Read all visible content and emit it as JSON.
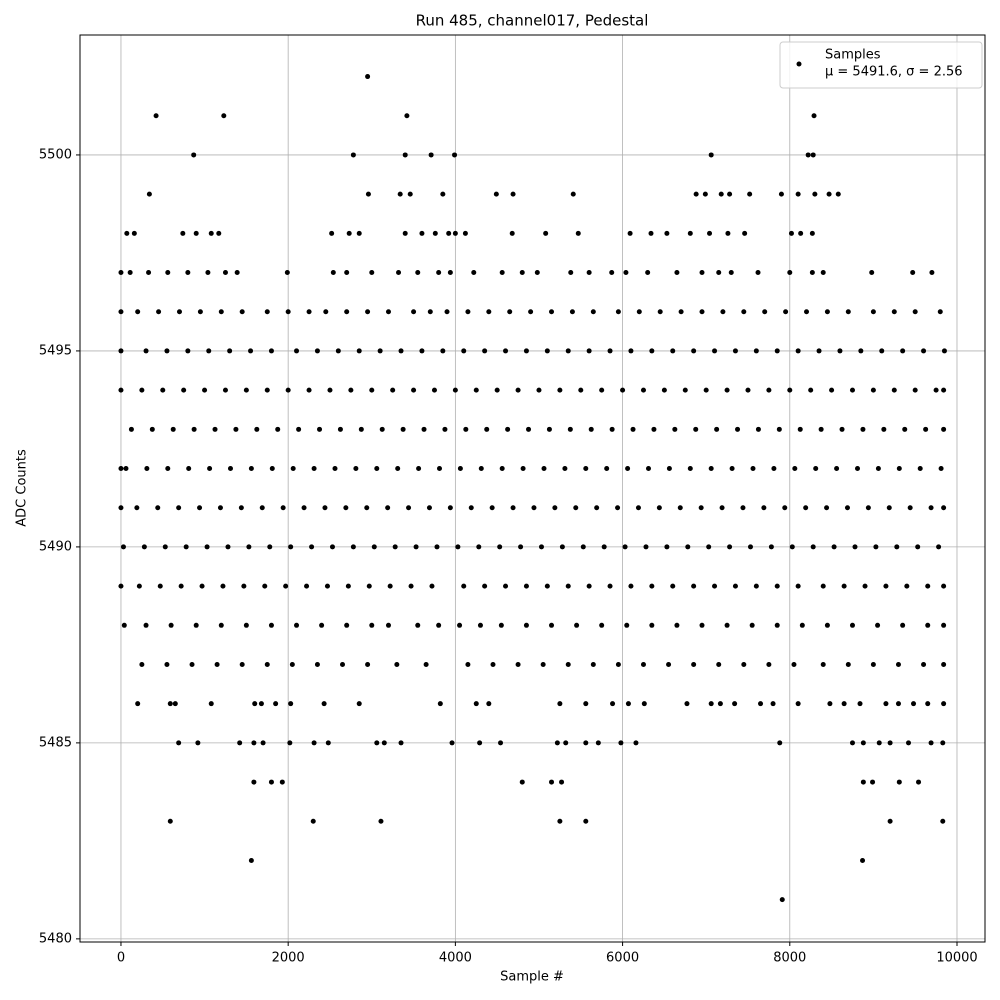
{
  "chart_data": {
    "type": "scatter",
    "title": "Run 485, channel017, Pedestal",
    "x_label": "Sample #",
    "y_label": "ADC Counts",
    "legend_note": "μ = 5491.6, σ = 2.56",
    "legend_position": "upper right",
    "grid": true,
    "xlim": [
      -490,
      10335
    ],
    "ylim": [
      5479.92,
      5503.06
    ],
    "xticks": [
      0,
      2000,
      4000,
      6000,
      8000,
      10000
    ],
    "yticks": [
      5480,
      5485,
      5490,
      5495,
      5500
    ],
    "series": [
      {
        "name": "Samples",
        "color": "#000000",
        "x": [
          0,
          110,
          330,
          560,
          800,
          1040,
          1250,
          1390,
          1990,
          2540,
          2700,
          3000,
          3320,
          3550,
          3800,
          3940,
          4220,
          4560,
          4800,
          4980,
          5380,
          5600,
          5870,
          6040,
          6300,
          6650,
          6950,
          7150,
          7300,
          7620,
          8000,
          8270,
          8400,
          8980,
          9470,
          9700,
          0,
          200,
          450,
          700,
          950,
          1200,
          1450,
          1750,
          2000,
          2250,
          2450,
          2700,
          2950,
          3200,
          3500,
          3700,
          3900,
          4150,
          4400,
          4650,
          4900,
          5150,
          5400,
          5650,
          5950,
          6200,
          6450,
          6700,
          6950,
          7200,
          7450,
          7700,
          7950,
          8200,
          8450,
          8700,
          9000,
          9250,
          9500,
          9800,
          0,
          300,
          550,
          800,
          1050,
          1300,
          1550,
          1800,
          2100,
          2350,
          2600,
          2850,
          3100,
          3350,
          3600,
          3850,
          4100,
          4350,
          4600,
          4850,
          5100,
          5350,
          5600,
          5850,
          6100,
          6350,
          6600,
          6850,
          7100,
          7350,
          7600,
          7850,
          8100,
          8350,
          8600,
          8850,
          9100,
          9350,
          9600,
          9850,
          0,
          250,
          500,
          750,
          1000,
          1250,
          1500,
          1750,
          2000,
          2250,
          2500,
          2750,
          3000,
          3250,
          3500,
          3750,
          4000,
          4250,
          4500,
          4750,
          5000,
          5250,
          5500,
          5750,
          6000,
          6250,
          6500,
          6750,
          7000,
          7250,
          7500,
          7750,
          8000,
          8250,
          8500,
          8750,
          9000,
          9250,
          9500,
          9750,
          9840,
          125,
          375,
          625,
          875,
          1125,
          1375,
          1625,
          1875,
          2125,
          2375,
          2625,
          2875,
          3125,
          3375,
          3625,
          3875,
          4125,
          4375,
          4625,
          4875,
          5125,
          5375,
          5625,
          5875,
          6125,
          6375,
          6625,
          6875,
          7125,
          7375,
          7625,
          7875,
          8125,
          8375,
          8625,
          8875,
          9125,
          9375,
          9625,
          9840,
          0,
          60,
          310,
          560,
          810,
          1060,
          1310,
          1560,
          1810,
          2060,
          2310,
          2560,
          2810,
          3060,
          3310,
          3560,
          3810,
          4060,
          4310,
          4560,
          4810,
          5060,
          5310,
          5560,
          5810,
          6060,
          6310,
          6560,
          6810,
          7060,
          7310,
          7560,
          7810,
          8060,
          8310,
          8560,
          8810,
          9060,
          9310,
          9560,
          9810,
          0,
          190,
          440,
          690,
          940,
          1190,
          1440,
          1690,
          1940,
          2190,
          2440,
          2690,
          2940,
          3190,
          3440,
          3690,
          3940,
          4190,
          4440,
          4690,
          4940,
          5190,
          5440,
          5690,
          5940,
          6190,
          6440,
          6690,
          6940,
          7190,
          7440,
          7690,
          7940,
          8190,
          8440,
          8690,
          8940,
          9190,
          9440,
          9690,
          9840,
          30,
          280,
          530,
          780,
          1030,
          1280,
          1530,
          1780,
          2030,
          2280,
          2530,
          2780,
          3030,
          3280,
          3530,
          3780,
          4030,
          4280,
          4530,
          4780,
          5030,
          5280,
          5530,
          5780,
          6030,
          6280,
          6530,
          6780,
          7030,
          7280,
          7530,
          7780,
          8030,
          8280,
          8530,
          8780,
          9030,
          9280,
          9530,
          9780,
          0,
          220,
          470,
          720,
          970,
          1220,
          1470,
          1720,
          1970,
          2220,
          2470,
          2720,
          2970,
          3220,
          3470,
          3720,
          4100,
          4350,
          4600,
          4850,
          5100,
          5350,
          5600,
          5850,
          6100,
          6350,
          6600,
          6850,
          7100,
          7350,
          7600,
          7850,
          8100,
          8400,
          8650,
          8900,
          9150,
          9400,
          9650,
          9840,
          40,
          300,
          600,
          900,
          1200,
          1500,
          1800,
          2100,
          2400,
          2700,
          3000,
          3200,
          3550,
          3800,
          4050,
          4300,
          4550,
          4850,
          5150,
          5450,
          5750,
          6050,
          6350,
          6650,
          6950,
          7250,
          7550,
          7850,
          8150,
          8450,
          8750,
          9050,
          9350,
          9650,
          9840,
          250,
          550,
          850,
          1150,
          1450,
          1750,
          2050,
          2350,
          2650,
          2950,
          3300,
          3650,
          4150,
          4450,
          4750,
          5050,
          5350,
          5650,
          5950,
          6250,
          6550,
          6850,
          7150,
          7450,
          7750,
          8050,
          8400,
          8700,
          9000,
          9300,
          9600,
          9840,
          2950,
          420,
          1230,
          3420,
          8290,
          870,
          2780,
          3400,
          3710,
          3990,
          7060,
          8220,
          8280,
          340,
          2960,
          3340,
          3460,
          3850,
          4490,
          4690,
          5410,
          6880,
          6990,
          7180,
          7280,
          7520,
          7900,
          8100,
          8300,
          8470,
          8580,
          70,
          160,
          740,
          900,
          1080,
          1170,
          2520,
          2730,
          2850,
          3400,
          3600,
          3760,
          3920,
          4000,
          4120,
          4680,
          5080,
          5470,
          6090,
          6340,
          6530,
          6810,
          7040,
          7260,
          7460,
          8020,
          8130,
          8270,
          200,
          590,
          650,
          1080,
          1600,
          1680,
          1850,
          2030,
          2430,
          2850,
          3820,
          4250,
          4400,
          5250,
          5560,
          5880,
          6070,
          6260,
          6770,
          7060,
          7170,
          7340,
          7650,
          7800,
          8100,
          8480,
          8650,
          8840,
          9150,
          9300,
          9480,
          9650,
          9840,
          690,
          920,
          1420,
          1590,
          1700,
          2020,
          2310,
          2480,
          3060,
          3150,
          3350,
          3960,
          4290,
          4540,
          5220,
          5320,
          5560,
          5710,
          5980,
          6160,
          7880,
          8750,
          8880,
          9070,
          9200,
          9420,
          9690,
          9830,
          1590,
          1800,
          1930,
          4800,
          5150,
          5270,
          8880,
          8990,
          9310,
          9540,
          590,
          2300,
          3110,
          5250,
          5560,
          9200,
          9830,
          1560,
          8870,
          7910
        ],
        "values": [
          5497,
          5497,
          5497,
          5497,
          5497,
          5497,
          5497,
          5497,
          5497,
          5497,
          5497,
          5497,
          5497,
          5497,
          5497,
          5497,
          5497,
          5497,
          5497,
          5497,
          5497,
          5497,
          5497,
          5497,
          5497,
          5497,
          5497,
          5497,
          5497,
          5497,
          5497,
          5497,
          5497,
          5497,
          5497,
          5497,
          5496,
          5496,
          5496,
          5496,
          5496,
          5496,
          5496,
          5496,
          5496,
          5496,
          5496,
          5496,
          5496,
          5496,
          5496,
          5496,
          5496,
          5496,
          5496,
          5496,
          5496,
          5496,
          5496,
          5496,
          5496,
          5496,
          5496,
          5496,
          5496,
          5496,
          5496,
          5496,
          5496,
          5496,
          5496,
          5496,
          5496,
          5496,
          5496,
          5496,
          5495,
          5495,
          5495,
          5495,
          5495,
          5495,
          5495,
          5495,
          5495,
          5495,
          5495,
          5495,
          5495,
          5495,
          5495,
          5495,
          5495,
          5495,
          5495,
          5495,
          5495,
          5495,
          5495,
          5495,
          5495,
          5495,
          5495,
          5495,
          5495,
          5495,
          5495,
          5495,
          5495,
          5495,
          5495,
          5495,
          5495,
          5495,
          5495,
          5495,
          5494,
          5494,
          5494,
          5494,
          5494,
          5494,
          5494,
          5494,
          5494,
          5494,
          5494,
          5494,
          5494,
          5494,
          5494,
          5494,
          5494,
          5494,
          5494,
          5494,
          5494,
          5494,
          5494,
          5494,
          5494,
          5494,
          5494,
          5494,
          5494,
          5494,
          5494,
          5494,
          5494,
          5494,
          5494,
          5494,
          5494,
          5494,
          5494,
          5494,
          5494,
          5493,
          5493,
          5493,
          5493,
          5493,
          5493,
          5493,
          5493,
          5493,
          5493,
          5493,
          5493,
          5493,
          5493,
          5493,
          5493,
          5493,
          5493,
          5493,
          5493,
          5493,
          5493,
          5493,
          5493,
          5493,
          5493,
          5493,
          5493,
          5493,
          5493,
          5493,
          5493,
          5493,
          5493,
          5493,
          5493,
          5493,
          5493,
          5493,
          5493,
          5492,
          5492,
          5492,
          5492,
          5492,
          5492,
          5492,
          5492,
          5492,
          5492,
          5492,
          5492,
          5492,
          5492,
          5492,
          5492,
          5492,
          5492,
          5492,
          5492,
          5492,
          5492,
          5492,
          5492,
          5492,
          5492,
          5492,
          5492,
          5492,
          5492,
          5492,
          5492,
          5492,
          5492,
          5492,
          5492,
          5492,
          5492,
          5492,
          5492,
          5492,
          5491,
          5491,
          5491,
          5491,
          5491,
          5491,
          5491,
          5491,
          5491,
          5491,
          5491,
          5491,
          5491,
          5491,
          5491,
          5491,
          5491,
          5491,
          5491,
          5491,
          5491,
          5491,
          5491,
          5491,
          5491,
          5491,
          5491,
          5491,
          5491,
          5491,
          5491,
          5491,
          5491,
          5491,
          5491,
          5491,
          5491,
          5491,
          5491,
          5491,
          5491,
          5490,
          5490,
          5490,
          5490,
          5490,
          5490,
          5490,
          5490,
          5490,
          5490,
          5490,
          5490,
          5490,
          5490,
          5490,
          5490,
          5490,
          5490,
          5490,
          5490,
          5490,
          5490,
          5490,
          5490,
          5490,
          5490,
          5490,
          5490,
          5490,
          5490,
          5490,
          5490,
          5490,
          5490,
          5490,
          5490,
          5490,
          5490,
          5490,
          5490,
          5489,
          5489,
          5489,
          5489,
          5489,
          5489,
          5489,
          5489,
          5489,
          5489,
          5489,
          5489,
          5489,
          5489,
          5489,
          5489,
          5489,
          5489,
          5489,
          5489,
          5489,
          5489,
          5489,
          5489,
          5489,
          5489,
          5489,
          5489,
          5489,
          5489,
          5489,
          5489,
          5489,
          5489,
          5489,
          5489,
          5489,
          5489,
          5489,
          5489,
          5488,
          5488,
          5488,
          5488,
          5488,
          5488,
          5488,
          5488,
          5488,
          5488,
          5488,
          5488,
          5488,
          5488,
          5488,
          5488,
          5488,
          5488,
          5488,
          5488,
          5488,
          5488,
          5488,
          5488,
          5488,
          5488,
          5488,
          5488,
          5488,
          5488,
          5488,
          5488,
          5488,
          5488,
          5488,
          5487,
          5487,
          5487,
          5487,
          5487,
          5487,
          5487,
          5487,
          5487,
          5487,
          5487,
          5487,
          5487,
          5487,
          5487,
          5487,
          5487,
          5487,
          5487,
          5487,
          5487,
          5487,
          5487,
          5487,
          5487,
          5487,
          5487,
          5487,
          5487,
          5487,
          5487,
          5487,
          5502,
          5501,
          5501,
          5501,
          5501,
          5500,
          5500,
          5500,
          5500,
          5500,
          5500,
          5500,
          5500,
          5499,
          5499,
          5499,
          5499,
          5499,
          5499,
          5499,
          5499,
          5499,
          5499,
          5499,
          5499,
          5499,
          5499,
          5499,
          5499,
          5499,
          5499,
          5498,
          5498,
          5498,
          5498,
          5498,
          5498,
          5498,
          5498,
          5498,
          5498,
          5498,
          5498,
          5498,
          5498,
          5498,
          5498,
          5498,
          5498,
          5498,
          5498,
          5498,
          5498,
          5498,
          5498,
          5498,
          5498,
          5498,
          5498,
          5486,
          5486,
          5486,
          5486,
          5486,
          5486,
          5486,
          5486,
          5486,
          5486,
          5486,
          5486,
          5486,
          5486,
          5486,
          5486,
          5486,
          5486,
          5486,
          5486,
          5486,
          5486,
          5486,
          5486,
          5486,
          5486,
          5486,
          5486,
          5486,
          5486,
          5486,
          5486,
          5486,
          5485,
          5485,
          5485,
          5485,
          5485,
          5485,
          5485,
          5485,
          5485,
          5485,
          5485,
          5485,
          5485,
          5485,
          5485,
          5485,
          5485,
          5485,
          5485,
          5485,
          5485,
          5485,
          5485,
          5485,
          5485,
          5485,
          5485,
          5485,
          5484,
          5484,
          5484,
          5484,
          5484,
          5484,
          5484,
          5484,
          5484,
          5484,
          5483,
          5483,
          5483,
          5483,
          5483,
          5483,
          5483,
          5482,
          5482,
          5481
        ]
      }
    ]
  }
}
